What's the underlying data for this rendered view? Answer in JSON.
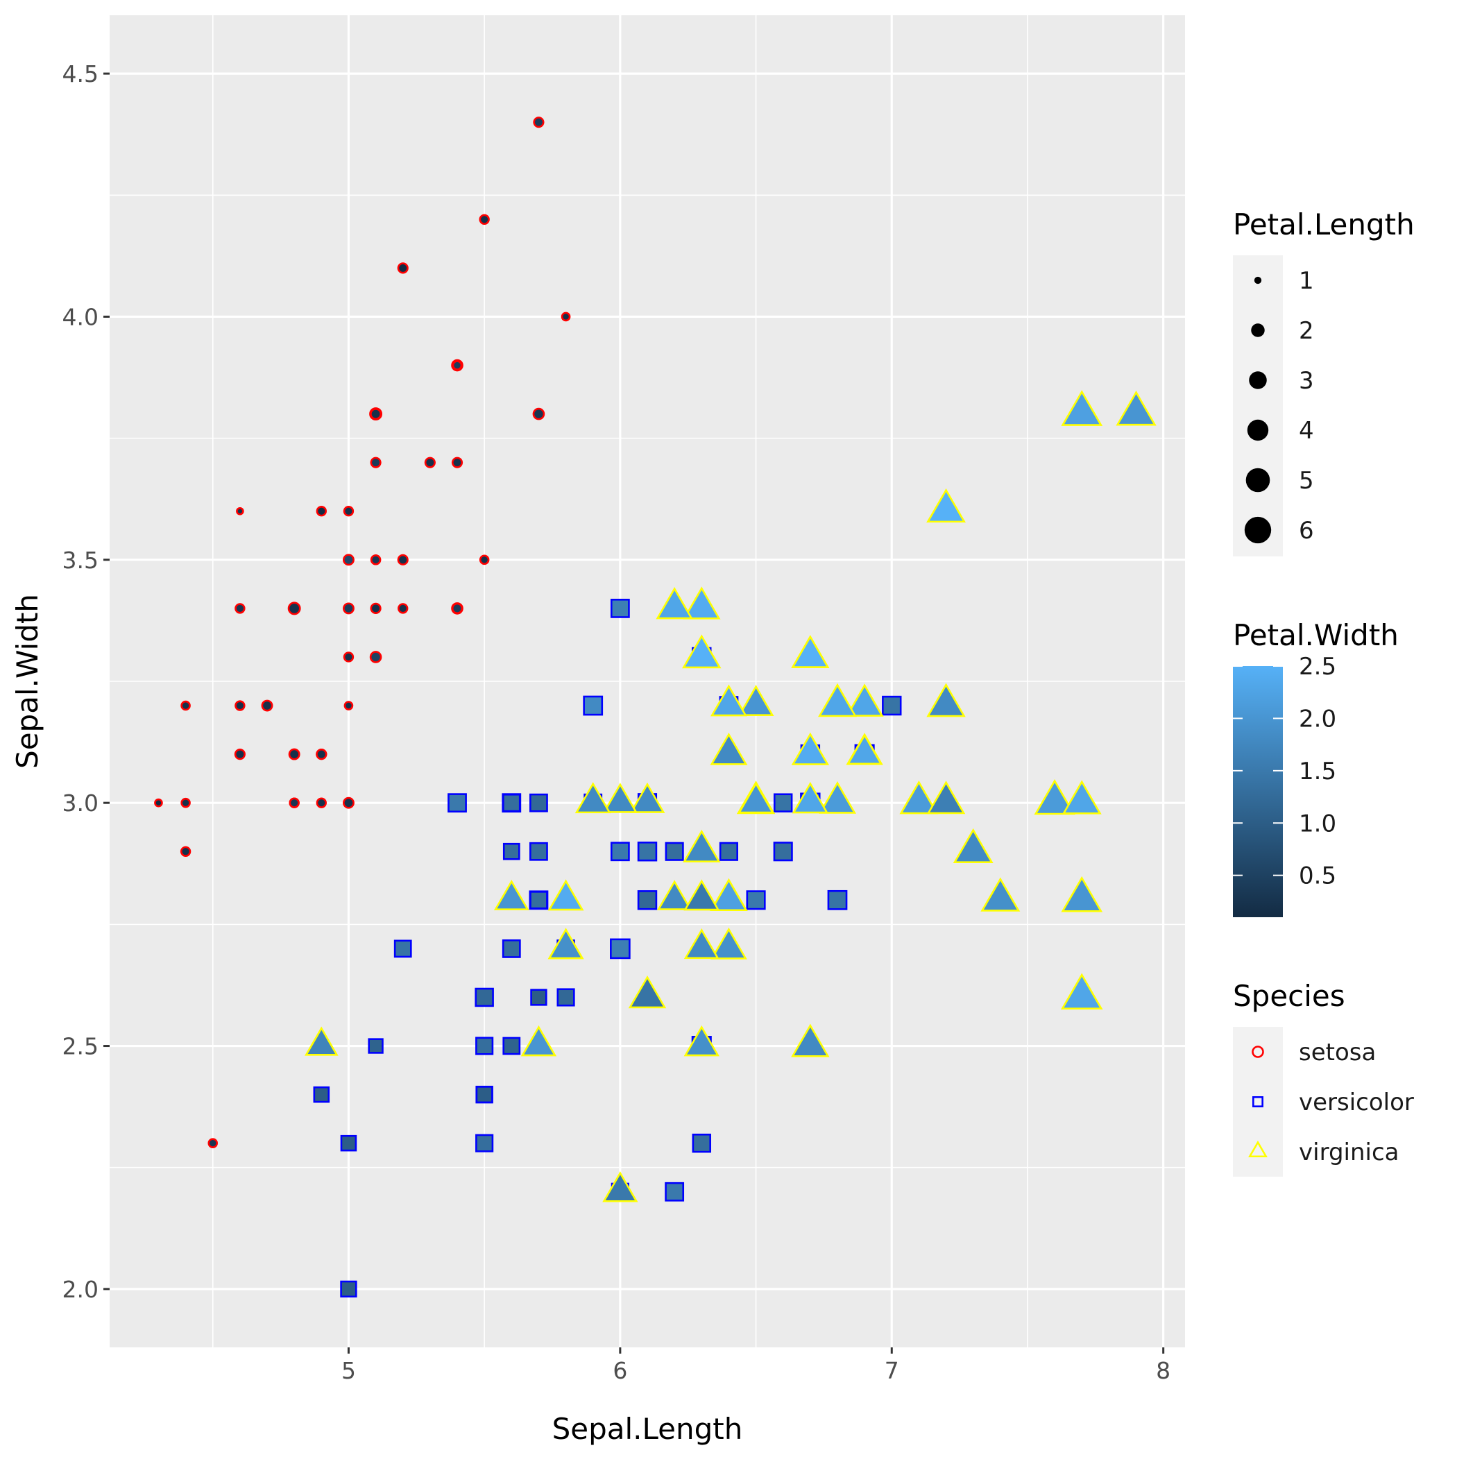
{
  "chart_data": {
    "type": "scatter",
    "title": "",
    "xlabel": "Sepal.Length",
    "ylabel": "Sepal.Width",
    "xlim": [
      4.12,
      8.08
    ],
    "ylim": [
      1.88,
      4.62
    ],
    "x_ticks": [
      5,
      6,
      7,
      8
    ],
    "x_tick_labels": [
      "5",
      "6",
      "7",
      "8"
    ],
    "y_ticks": [
      2.0,
      2.5,
      3.0,
      3.5,
      4.0,
      4.5
    ],
    "y_tick_labels": [
      "2.0",
      "2.5",
      "3.0",
      "3.5",
      "4.0",
      "4.5"
    ],
    "grid": true,
    "background": "#ebebeb",
    "encodings": {
      "size": "Petal.Length",
      "color": "Petal.Width",
      "shape_and_outline": "Species"
    },
    "legend": {
      "position": "right",
      "size": {
        "title": "Petal.Length",
        "entries": [
          {
            "value": 1,
            "label": "1"
          },
          {
            "value": 2,
            "label": "2"
          },
          {
            "value": 3,
            "label": "3"
          },
          {
            "value": 4,
            "label": "4"
          },
          {
            "value": 5,
            "label": "5"
          },
          {
            "value": 6,
            "label": "6"
          }
        ]
      },
      "color": {
        "title": "Petal.Width",
        "low": "#132B43",
        "high": "#56B1F7",
        "range": [
          0.1,
          2.5
        ],
        "ticks": [
          0.5,
          1.0,
          1.5,
          2.0,
          2.5
        ],
        "tick_labels": [
          "0.5",
          "1.0",
          "1.5",
          "2.0",
          "2.5"
        ]
      },
      "shape": {
        "title": "Species",
        "entries": [
          {
            "label": "setosa",
            "shape": "circle",
            "outline": "#ff0000"
          },
          {
            "label": "versicolor",
            "shape": "square",
            "outline": "#0000ff"
          },
          {
            "label": "virginica",
            "shape": "triangle",
            "outline": "#ffff00"
          }
        ]
      }
    },
    "series": [
      {
        "name": "setosa",
        "shape": "circle",
        "outline": "#ff0000",
        "points": [
          [
            5.1,
            3.5,
            1.4,
            0.2
          ],
          [
            4.9,
            3.0,
            1.4,
            0.2
          ],
          [
            4.7,
            3.2,
            1.3,
            0.2
          ],
          [
            4.6,
            3.1,
            1.5,
            0.2
          ],
          [
            5.0,
            3.6,
            1.4,
            0.2
          ],
          [
            5.4,
            3.9,
            1.7,
            0.4
          ],
          [
            4.6,
            3.4,
            1.4,
            0.3
          ],
          [
            5.0,
            3.4,
            1.5,
            0.2
          ],
          [
            4.4,
            2.9,
            1.4,
            0.2
          ],
          [
            4.9,
            3.1,
            1.5,
            0.1
          ],
          [
            5.4,
            3.7,
            1.5,
            0.2
          ],
          [
            4.8,
            3.4,
            1.6,
            0.2
          ],
          [
            4.8,
            3.0,
            1.4,
            0.1
          ],
          [
            4.3,
            3.0,
            1.1,
            0.1
          ],
          [
            5.8,
            4.0,
            1.2,
            0.2
          ],
          [
            5.7,
            4.4,
            1.5,
            0.4
          ],
          [
            5.4,
            3.9,
            1.3,
            0.4
          ],
          [
            5.1,
            3.5,
            1.4,
            0.3
          ],
          [
            5.7,
            3.8,
            1.7,
            0.3
          ],
          [
            5.1,
            3.8,
            1.5,
            0.3
          ],
          [
            5.4,
            3.4,
            1.7,
            0.2
          ],
          [
            5.1,
            3.7,
            1.5,
            0.4
          ],
          [
            4.6,
            3.6,
            1.0,
            0.2
          ],
          [
            5.1,
            3.3,
            1.7,
            0.5
          ],
          [
            4.8,
            3.4,
            1.9,
            0.2
          ],
          [
            5.0,
            3.0,
            1.6,
            0.2
          ],
          [
            5.0,
            3.4,
            1.6,
            0.4
          ],
          [
            5.2,
            3.5,
            1.5,
            0.2
          ],
          [
            5.2,
            3.4,
            1.4,
            0.2
          ],
          [
            4.7,
            3.2,
            1.6,
            0.2
          ],
          [
            4.8,
            3.1,
            1.6,
            0.2
          ],
          [
            5.4,
            3.4,
            1.5,
            0.4
          ],
          [
            5.2,
            4.1,
            1.5,
            0.1
          ],
          [
            5.5,
            4.2,
            1.4,
            0.2
          ],
          [
            4.9,
            3.1,
            1.5,
            0.2
          ],
          [
            5.0,
            3.2,
            1.2,
            0.2
          ],
          [
            5.5,
            3.5,
            1.3,
            0.2
          ],
          [
            4.9,
            3.6,
            1.4,
            0.1
          ],
          [
            4.4,
            3.0,
            1.3,
            0.2
          ],
          [
            5.1,
            3.4,
            1.5,
            0.2
          ],
          [
            5.0,
            3.5,
            1.3,
            0.3
          ],
          [
            4.5,
            2.3,
            1.3,
            0.3
          ],
          [
            4.4,
            3.2,
            1.3,
            0.2
          ],
          [
            5.0,
            3.5,
            1.6,
            0.6
          ],
          [
            5.1,
            3.8,
            1.9,
            0.4
          ],
          [
            4.8,
            3.0,
            1.4,
            0.3
          ],
          [
            5.1,
            3.8,
            1.6,
            0.2
          ],
          [
            4.6,
            3.2,
            1.4,
            0.2
          ],
          [
            5.3,
            3.7,
            1.5,
            0.2
          ],
          [
            5.0,
            3.3,
            1.4,
            0.2
          ]
        ]
      },
      {
        "name": "versicolor",
        "shape": "square",
        "outline": "#0000ff",
        "points": [
          [
            7.0,
            3.2,
            4.7,
            1.4
          ],
          [
            6.4,
            3.2,
            4.5,
            1.5
          ],
          [
            6.9,
            3.1,
            4.9,
            1.5
          ],
          [
            5.5,
            2.3,
            4.0,
            1.3
          ],
          [
            6.5,
            2.8,
            4.6,
            1.5
          ],
          [
            5.7,
            2.8,
            4.5,
            1.3
          ],
          [
            6.3,
            3.3,
            4.7,
            1.6
          ],
          [
            4.9,
            2.4,
            3.3,
            1.0
          ],
          [
            6.6,
            2.9,
            4.6,
            1.3
          ],
          [
            5.2,
            2.7,
            3.9,
            1.4
          ],
          [
            5.0,
            2.0,
            3.5,
            1.0
          ],
          [
            5.9,
            3.0,
            4.2,
            1.5
          ],
          [
            6.0,
            2.2,
            4.0,
            1.0
          ],
          [
            6.1,
            2.9,
            4.7,
            1.4
          ],
          [
            5.6,
            2.9,
            3.6,
            1.3
          ],
          [
            6.7,
            3.1,
            4.4,
            1.4
          ],
          [
            5.6,
            3.0,
            4.5,
            1.5
          ],
          [
            5.8,
            2.7,
            4.1,
            1.0
          ],
          [
            6.2,
            2.2,
            4.5,
            1.5
          ],
          [
            5.6,
            2.5,
            3.9,
            1.1
          ],
          [
            5.9,
            3.2,
            4.8,
            1.8
          ],
          [
            6.1,
            2.8,
            4.0,
            1.3
          ],
          [
            6.3,
            2.5,
            4.9,
            1.5
          ],
          [
            6.1,
            2.8,
            4.7,
            1.2
          ],
          [
            6.4,
            2.9,
            4.3,
            1.3
          ],
          [
            6.6,
            3.0,
            4.4,
            1.4
          ],
          [
            6.8,
            2.8,
            4.8,
            1.4
          ],
          [
            6.7,
            3.0,
            5.0,
            1.7
          ],
          [
            6.0,
            2.9,
            4.5,
            1.5
          ],
          [
            5.7,
            2.6,
            3.5,
            1.0
          ],
          [
            5.5,
            2.4,
            3.8,
            1.1
          ],
          [
            5.5,
            2.4,
            3.7,
            1.0
          ],
          [
            5.8,
            2.7,
            3.9,
            1.2
          ],
          [
            6.0,
            2.7,
            5.1,
            1.6
          ],
          [
            5.4,
            3.0,
            4.5,
            1.5
          ],
          [
            6.0,
            3.4,
            4.5,
            1.6
          ],
          [
            6.7,
            3.1,
            4.7,
            1.5
          ],
          [
            6.3,
            2.3,
            4.4,
            1.3
          ],
          [
            5.6,
            3.0,
            4.1,
            1.3
          ],
          [
            5.5,
            2.5,
            4.0,
            1.3
          ],
          [
            5.5,
            2.6,
            4.4,
            1.2
          ],
          [
            6.1,
            3.0,
            4.6,
            1.4
          ],
          [
            5.8,
            2.6,
            4.0,
            1.2
          ],
          [
            5.0,
            2.3,
            3.3,
            1.0
          ],
          [
            5.6,
            2.7,
            4.2,
            1.3
          ],
          [
            5.7,
            3.0,
            4.2,
            1.2
          ],
          [
            5.7,
            2.9,
            4.2,
            1.3
          ],
          [
            6.2,
            2.9,
            4.3,
            1.3
          ],
          [
            5.1,
            2.5,
            3.0,
            1.1
          ],
          [
            5.7,
            2.8,
            4.1,
            1.3
          ]
        ]
      },
      {
        "name": "virginica",
        "shape": "triangle",
        "outline": "#ffff00",
        "points": [
          [
            6.3,
            3.3,
            6.0,
            2.5
          ],
          [
            5.8,
            2.7,
            5.1,
            1.9
          ],
          [
            7.1,
            3.0,
            5.9,
            2.1
          ],
          [
            6.3,
            2.9,
            5.6,
            1.8
          ],
          [
            6.5,
            3.0,
            5.8,
            2.2
          ],
          [
            7.6,
            3.0,
            6.6,
            2.1
          ],
          [
            4.9,
            2.5,
            4.5,
            1.7
          ],
          [
            7.3,
            2.9,
            6.3,
            1.8
          ],
          [
            6.7,
            2.5,
            5.8,
            1.8
          ],
          [
            7.2,
            3.6,
            6.1,
            2.5
          ],
          [
            6.5,
            3.2,
            5.1,
            2.0
          ],
          [
            6.4,
            2.7,
            5.3,
            1.9
          ],
          [
            6.8,
            3.0,
            5.5,
            2.1
          ],
          [
            5.7,
            2.5,
            5.0,
            2.0
          ],
          [
            5.8,
            2.8,
            5.1,
            2.4
          ],
          [
            6.4,
            3.2,
            5.3,
            2.3
          ],
          [
            6.5,
            3.0,
            5.5,
            1.8
          ],
          [
            7.7,
            3.8,
            6.7,
            2.2
          ],
          [
            7.7,
            2.6,
            6.9,
            2.3
          ],
          [
            6.0,
            2.2,
            5.0,
            1.5
          ],
          [
            6.9,
            3.2,
            5.7,
            2.3
          ],
          [
            5.6,
            2.8,
            4.9,
            2.0
          ],
          [
            7.7,
            2.8,
            6.7,
            2.0
          ],
          [
            6.3,
            2.7,
            4.9,
            1.8
          ],
          [
            6.7,
            3.3,
            5.7,
            2.1
          ],
          [
            7.2,
            3.2,
            6.0,
            1.8
          ],
          [
            6.2,
            2.8,
            4.8,
            1.8
          ],
          [
            6.1,
            3.0,
            4.9,
            1.8
          ],
          [
            6.4,
            2.8,
            5.6,
            2.1
          ],
          [
            7.2,
            3.0,
            5.8,
            1.6
          ],
          [
            7.4,
            2.8,
            6.1,
            1.9
          ],
          [
            7.9,
            3.8,
            6.4,
            2.0
          ],
          [
            6.4,
            2.8,
            5.6,
            2.2
          ],
          [
            6.3,
            2.8,
            5.1,
            1.5
          ],
          [
            6.1,
            2.6,
            5.6,
            1.4
          ],
          [
            7.7,
            3.0,
            6.1,
            2.3
          ],
          [
            6.3,
            3.4,
            5.6,
            2.4
          ],
          [
            6.4,
            3.1,
            5.5,
            1.8
          ],
          [
            6.0,
            3.0,
            4.8,
            1.8
          ],
          [
            6.9,
            3.1,
            5.4,
            2.1
          ],
          [
            6.7,
            3.1,
            5.6,
            2.4
          ],
          [
            6.9,
            3.1,
            5.1,
            2.3
          ],
          [
            5.8,
            2.7,
            5.1,
            1.9
          ],
          [
            6.8,
            3.2,
            5.9,
            2.3
          ],
          [
            6.7,
            3.3,
            5.7,
            2.5
          ],
          [
            6.7,
            3.0,
            5.2,
            2.3
          ],
          [
            6.3,
            2.5,
            5.0,
            1.9
          ],
          [
            6.5,
            3.0,
            5.2,
            2.0
          ],
          [
            6.2,
            3.4,
            5.4,
            2.3
          ],
          [
            5.9,
            3.0,
            5.1,
            1.8
          ]
        ]
      }
    ]
  }
}
